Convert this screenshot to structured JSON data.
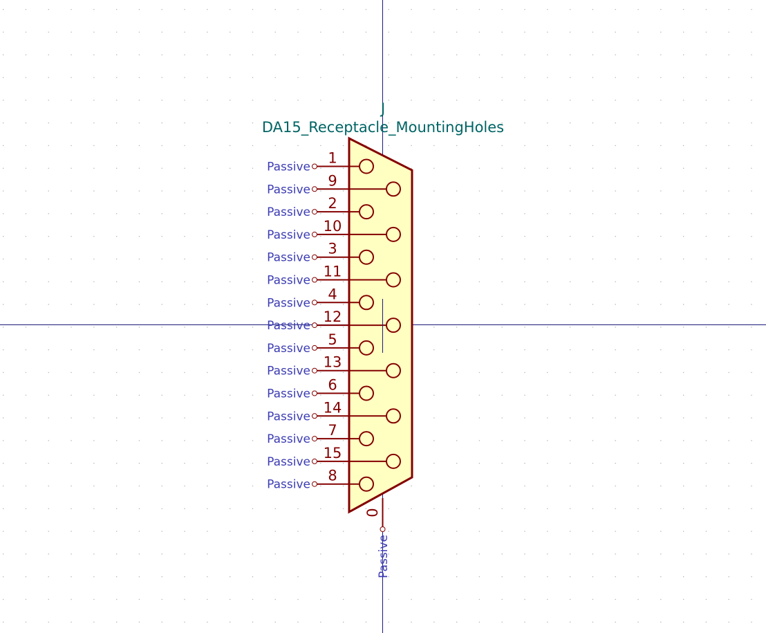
{
  "symbol": {
    "reference": "J",
    "value": "DA15_Receptacle_MountingHoles"
  },
  "colors": {
    "background": "#ffffff",
    "grid_dot": "#b4b4b4",
    "axis": "#1a1a7a",
    "body_outline": "#840000",
    "body_fill": "#ffffc2",
    "pin_line": "#840000",
    "pin_number": "#840000",
    "pin_type": "#3c3cb4",
    "field_text": "#006464"
  },
  "pins": [
    {
      "number": "1",
      "type": "Passive",
      "row": "top"
    },
    {
      "number": "9",
      "type": "Passive",
      "row": "bottom"
    },
    {
      "number": "2",
      "type": "Passive",
      "row": "top"
    },
    {
      "number": "10",
      "type": "Passive",
      "row": "bottom"
    },
    {
      "number": "3",
      "type": "Passive",
      "row": "top"
    },
    {
      "number": "11",
      "type": "Passive",
      "row": "bottom"
    },
    {
      "number": "4",
      "type": "Passive",
      "row": "top"
    },
    {
      "number": "12",
      "type": "Passive",
      "row": "bottom"
    },
    {
      "number": "5",
      "type": "Passive",
      "row": "top"
    },
    {
      "number": "13",
      "type": "Passive",
      "row": "bottom"
    },
    {
      "number": "6",
      "type": "Passive",
      "row": "top"
    },
    {
      "number": "14",
      "type": "Passive",
      "row": "bottom"
    },
    {
      "number": "7",
      "type": "Passive",
      "row": "top"
    },
    {
      "number": "15",
      "type": "Passive",
      "row": "bottom"
    },
    {
      "number": "8",
      "type": "Passive",
      "row": "top"
    }
  ],
  "shield_pin": {
    "number": "0",
    "type": "Passive"
  }
}
